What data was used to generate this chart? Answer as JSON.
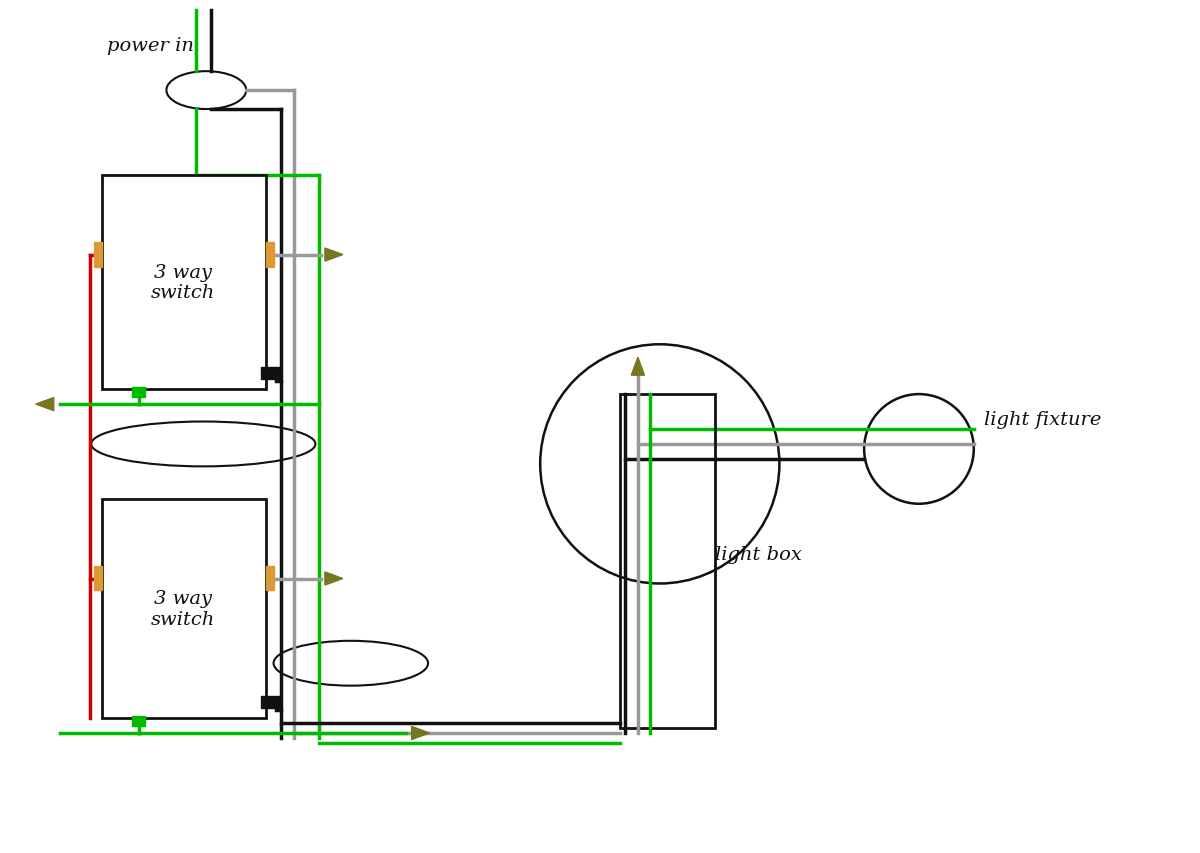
{
  "bg_color": "#ffffff",
  "wire_green": "#00bb00",
  "wire_black": "#111111",
  "wire_gray": "#999999",
  "wire_red": "#cc0000",
  "connector_color": "#777722",
  "title": "power in",
  "label_light_box": "light box",
  "label_light_fixture": "light fixture",
  "label_switch1": "3 way\nswitch",
  "label_switch2": "3 way\nswitch",
  "font": "DejaVu Serif"
}
